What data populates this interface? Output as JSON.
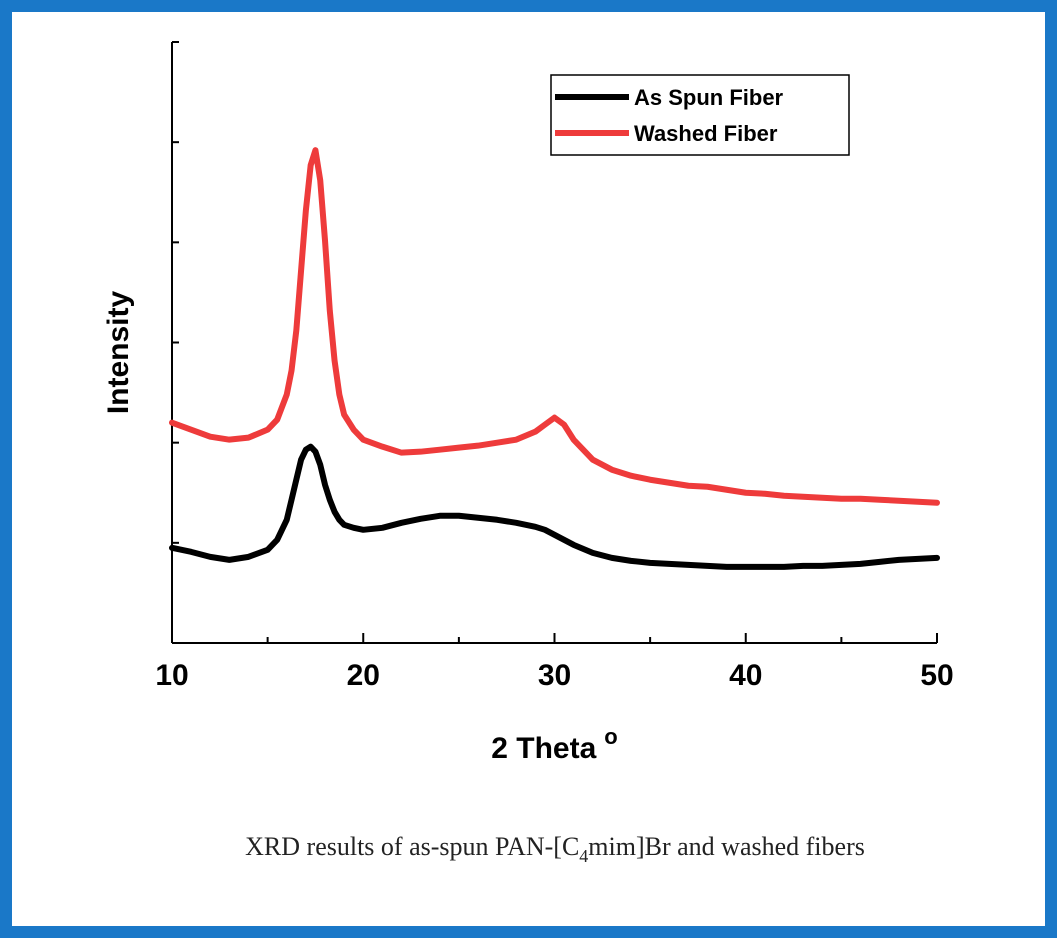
{
  "chart_data": {
    "type": "line",
    "x_label": "2 Theta",
    "x_label_superscript": "o",
    "y_label": "Intensity",
    "x": [
      10,
      11,
      12,
      13,
      14,
      15,
      15.5,
      16,
      16.25,
      16.5,
      16.75,
      17,
      17.25,
      17.5,
      17.75,
      18,
      18.25,
      18.5,
      18.75,
      19,
      19.5,
      20,
      21,
      22,
      23,
      24,
      25,
      26,
      27,
      28,
      29,
      29.5,
      30,
      30.5,
      31,
      32,
      33,
      34,
      35,
      36,
      37,
      38,
      39,
      40,
      41,
      42,
      43,
      44,
      45,
      46,
      47,
      48,
      49,
      50
    ],
    "series": [
      {
        "name": "As Spun Fiber",
        "color": "#000000",
        "values": [
          0.95,
          0.91,
          0.86,
          0.83,
          0.86,
          0.93,
          1.03,
          1.23,
          1.43,
          1.63,
          1.83,
          1.93,
          1.96,
          1.91,
          1.78,
          1.58,
          1.43,
          1.31,
          1.23,
          1.18,
          1.15,
          1.13,
          1.15,
          1.2,
          1.24,
          1.27,
          1.27,
          1.25,
          1.23,
          1.2,
          1.16,
          1.13,
          1.08,
          1.03,
          0.98,
          0.9,
          0.85,
          0.82,
          0.8,
          0.79,
          0.78,
          0.77,
          0.76,
          0.76,
          0.76,
          0.76,
          0.77,
          0.77,
          0.78,
          0.79,
          0.81,
          0.83,
          0.84,
          0.85
        ]
      },
      {
        "name": "Washed Fiber",
        "color": "#ee3b3b",
        "values": [
          2.2,
          2.13,
          2.06,
          2.03,
          2.05,
          2.13,
          2.23,
          2.48,
          2.72,
          3.12,
          3.72,
          4.32,
          4.77,
          4.92,
          4.62,
          4.02,
          3.32,
          2.82,
          2.48,
          2.28,
          2.13,
          2.03,
          1.96,
          1.9,
          1.91,
          1.93,
          1.95,
          1.97,
          2.0,
          2.03,
          2.11,
          2.18,
          2.25,
          2.18,
          2.03,
          1.83,
          1.73,
          1.67,
          1.63,
          1.6,
          1.57,
          1.56,
          1.53,
          1.5,
          1.49,
          1.47,
          1.46,
          1.45,
          1.44,
          1.44,
          1.43,
          1.42,
          1.41,
          1.4
        ]
      }
    ],
    "xlim": [
      10,
      50
    ],
    "xticks": [
      10,
      20,
      30,
      40,
      50
    ],
    "xminor_ticks": [
      15,
      25,
      35,
      45
    ],
    "ylim": [
      0,
      6
    ],
    "yticks": [
      1,
      2,
      3,
      4,
      5,
      6
    ],
    "legend": "upper right"
  },
  "caption": {
    "before": "XRD results of as-spun PAN-[C",
    "sub": "4",
    "after": "mim]Br and washed fibers"
  }
}
